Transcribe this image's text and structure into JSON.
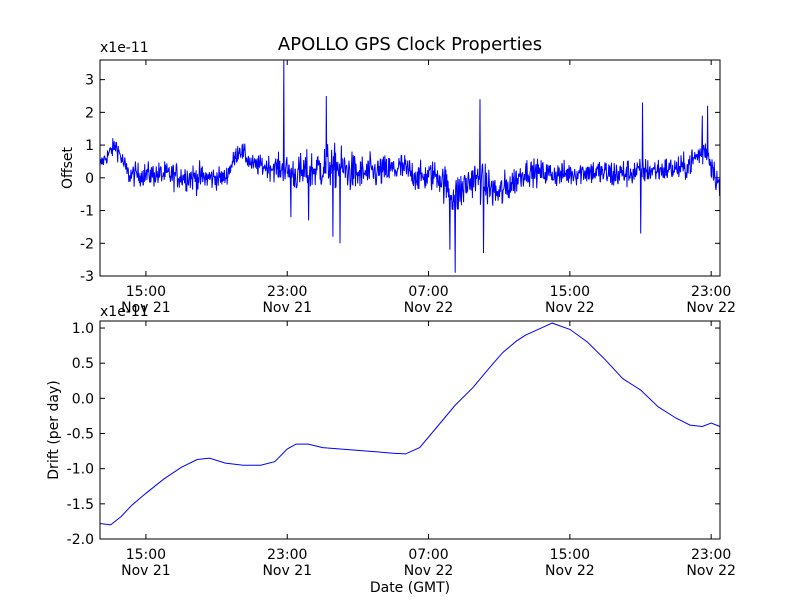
{
  "chart_data": [
    {
      "type": "line",
      "title": "APOLLO GPS Clock Properties",
      "ylabel": "Offset",
      "y_scale_label": "x1e-11",
      "ylim": [
        -3,
        3.6
      ],
      "y_ticks": [
        -3,
        -2,
        -1,
        0,
        1,
        2,
        3
      ],
      "y_tick_labels": [
        "-3",
        "-2",
        "-1",
        "0",
        "1",
        "2",
        "3"
      ],
      "xlim_hours": [
        12.4,
        47.5
      ],
      "x_ticks": [
        {
          "hour": 15,
          "time": "15:00",
          "date": "Nov 21"
        },
        {
          "hour": 23,
          "time": "23:00",
          "date": "Nov 21"
        },
        {
          "hour": 31,
          "time": "07:00",
          "date": "Nov 22"
        },
        {
          "hour": 39,
          "time": "15:00",
          "date": "Nov 22"
        },
        {
          "hour": 47,
          "time": "23:00",
          "date": "Nov 22"
        }
      ],
      "color": "#0000ff",
      "noise_profile": [
        [
          12.4,
          0.4,
          0.25
        ],
        [
          13.3,
          1.0,
          0.3
        ],
        [
          14.0,
          0.1,
          0.35
        ],
        [
          16.0,
          0.1,
          0.4
        ],
        [
          18.0,
          0.0,
          0.45
        ],
        [
          19.5,
          0.0,
          0.3
        ],
        [
          20.3,
          0.9,
          0.3
        ],
        [
          21.0,
          0.4,
          0.3
        ],
        [
          22.5,
          0.3,
          0.4
        ],
        [
          23.6,
          0.1,
          0.6
        ],
        [
          25.5,
          0.4,
          0.7
        ],
        [
          27.0,
          0.1,
          0.6
        ],
        [
          28.5,
          0.2,
          0.5
        ],
        [
          29.5,
          0.3,
          0.5
        ],
        [
          30.5,
          0.0,
          0.45
        ],
        [
          31.5,
          0.1,
          0.5
        ],
        [
          32.5,
          -0.6,
          0.7
        ],
        [
          33.5,
          0.0,
          0.6
        ],
        [
          35.0,
          -0.5,
          0.6
        ],
        [
          36.5,
          0.2,
          0.4
        ],
        [
          38.5,
          0.1,
          0.4
        ],
        [
          40.0,
          0.2,
          0.4
        ],
        [
          41.5,
          0.1,
          0.5
        ],
        [
          43.0,
          0.2,
          0.4
        ],
        [
          45.5,
          0.3,
          0.4
        ],
        [
          46.7,
          0.9,
          0.5
        ],
        [
          47.5,
          -0.3,
          0.4
        ]
      ],
      "spikes": [
        {
          "x": 22.8,
          "y": 3.6
        },
        {
          "x": 23.2,
          "y": -1.2
        },
        {
          "x": 24.2,
          "y": -1.3
        },
        {
          "x": 25.2,
          "y": 2.5
        },
        {
          "x": 25.6,
          "y": -1.8
        },
        {
          "x": 26.0,
          "y": -2.0
        },
        {
          "x": 32.5,
          "y": -2.9
        },
        {
          "x": 32.2,
          "y": -2.2
        },
        {
          "x": 33.9,
          "y": 2.4
        },
        {
          "x": 34.1,
          "y": -2.3
        },
        {
          "x": 43.1,
          "y": 2.3
        },
        {
          "x": 43.0,
          "y": -1.7
        },
        {
          "x": 46.8,
          "y": 2.2
        },
        {
          "x": 46.5,
          "y": 1.9
        }
      ]
    },
    {
      "type": "line",
      "ylabel": "Drift (per day)",
      "xlabel": "Date (GMT)",
      "y_scale_label": "x1e-11",
      "ylim": [
        -2.0,
        1.1
      ],
      "y_ticks": [
        -2.0,
        -1.5,
        -1.0,
        -0.5,
        0.0,
        0.5,
        1.0
      ],
      "y_tick_labels": [
        "-2.0",
        "-1.5",
        "-1.0",
        "-0.5",
        "0.0",
        "0.5",
        "1.0"
      ],
      "xlim_hours": [
        12.4,
        47.5
      ],
      "x_ticks": [
        {
          "hour": 15,
          "time": "15:00",
          "date": "Nov 21"
        },
        {
          "hour": 23,
          "time": "23:00",
          "date": "Nov 21"
        },
        {
          "hour": 31,
          "time": "07:00",
          "date": "Nov 22"
        },
        {
          "hour": 39,
          "time": "15:00",
          "date": "Nov 22"
        },
        {
          "hour": 47,
          "time": "23:00",
          "date": "Nov 22"
        }
      ],
      "color": "#0000ff",
      "x": [
        12.4,
        13.0,
        13.6,
        14.2,
        15.0,
        16.0,
        17.0,
        17.9,
        18.6,
        19.5,
        20.5,
        21.5,
        22.3,
        23.0,
        23.5,
        24.2,
        25.0,
        26.0,
        27.0,
        28.0,
        29.0,
        29.7,
        30.5,
        31.5,
        32.5,
        33.5,
        34.5,
        35.2,
        36.0,
        36.5,
        37.2,
        38.0,
        39.0,
        40.0,
        41.0,
        42.0,
        43.0,
        44.0,
        45.0,
        45.8,
        46.5,
        47.0,
        47.5
      ],
      "y": [
        -1.78,
        -1.8,
        -1.68,
        -1.52,
        -1.35,
        -1.15,
        -0.98,
        -0.87,
        -0.85,
        -0.92,
        -0.95,
        -0.95,
        -0.9,
        -0.72,
        -0.65,
        -0.65,
        -0.7,
        -0.72,
        -0.74,
        -0.76,
        -0.78,
        -0.79,
        -0.7,
        -0.4,
        -0.1,
        0.15,
        0.45,
        0.65,
        0.82,
        0.9,
        0.98,
        1.07,
        0.98,
        0.8,
        0.55,
        0.28,
        0.12,
        -0.12,
        -0.28,
        -0.38,
        -0.4,
        -0.35,
        -0.4
      ]
    }
  ],
  "xlabel": "Date (GMT)"
}
